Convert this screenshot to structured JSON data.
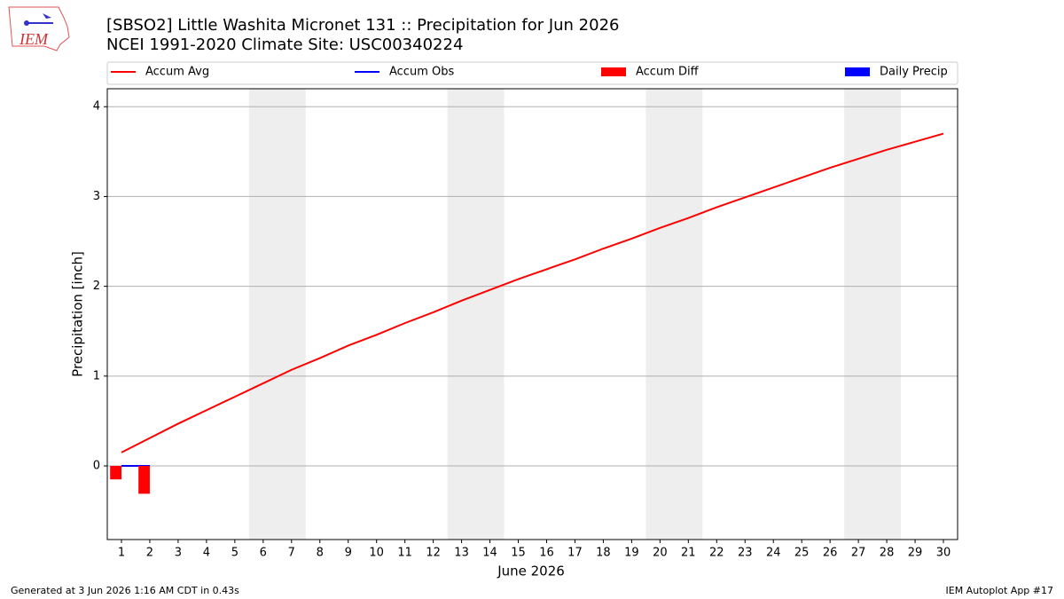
{
  "logo_text": "IEM",
  "footer": {
    "left": "Generated at 3 Jun 2026 1:16 AM CDT in 0.43s",
    "right": "IEM Autoplot App #17"
  },
  "chart_data": {
    "type": "line",
    "title": "[SBSO2] Little Washita Micronet 131 :: Precipitation for Jun 2026",
    "subtitle": "NCEI 1991-2020 Climate Site: USC00340224",
    "x_label": "June 2026",
    "y_label": "Precipitation [inch]",
    "x": [
      1,
      2,
      3,
      4,
      5,
      6,
      7,
      8,
      9,
      10,
      11,
      12,
      13,
      14,
      15,
      16,
      17,
      18,
      19,
      20,
      21,
      22,
      23,
      24,
      25,
      26,
      27,
      28,
      29,
      30
    ],
    "xlim": [
      0.5,
      30.5
    ],
    "xticks": [
      1,
      2,
      3,
      4,
      5,
      6,
      7,
      8,
      9,
      10,
      11,
      12,
      13,
      14,
      15,
      16,
      17,
      18,
      19,
      20,
      21,
      22,
      23,
      24,
      25,
      26,
      27,
      28,
      29,
      30
    ],
    "ylim": [
      -0.82,
      4.2
    ],
    "yticks": [
      0,
      1,
      2,
      3,
      4
    ],
    "grid": true,
    "shaded_x_ranges": [
      [
        5.5,
        7.5
      ],
      [
        12.5,
        14.5
      ],
      [
        19.5,
        21.5
      ],
      [
        26.5,
        28.5
      ]
    ],
    "shade_color": "#eeeeee",
    "series": [
      {
        "name": "Accum Avg",
        "type": "line",
        "color": "#ff0000",
        "values": [
          0.15,
          0.31,
          0.47,
          0.62,
          0.77,
          0.92,
          1.07,
          1.2,
          1.34,
          1.46,
          1.59,
          1.71,
          1.84,
          1.96,
          2.08,
          2.19,
          2.3,
          2.42,
          2.53,
          2.65,
          2.76,
          2.88,
          2.99,
          3.1,
          3.21,
          3.32,
          3.42,
          3.52,
          3.61,
          3.7
        ]
      },
      {
        "name": "Accum Obs",
        "type": "line",
        "color": "#0000ff",
        "values": [
          0,
          0,
          null,
          null,
          null,
          null,
          null,
          null,
          null,
          null,
          null,
          null,
          null,
          null,
          null,
          null,
          null,
          null,
          null,
          null,
          null,
          null,
          null,
          null,
          null,
          null,
          null,
          null,
          null,
          null
        ]
      },
      {
        "name": "Accum Diff",
        "type": "bar",
        "color": "#ff0000",
        "values": [
          -0.15,
          -0.31,
          null,
          null,
          null,
          null,
          null,
          null,
          null,
          null,
          null,
          null,
          null,
          null,
          null,
          null,
          null,
          null,
          null,
          null,
          null,
          null,
          null,
          null,
          null,
          null,
          null,
          null,
          null,
          null
        ]
      },
      {
        "name": "Daily Precip",
        "type": "bar",
        "color": "#0000ff",
        "values": [
          0,
          0,
          null,
          null,
          null,
          null,
          null,
          null,
          null,
          null,
          null,
          null,
          null,
          null,
          null,
          null,
          null,
          null,
          null,
          null,
          null,
          null,
          null,
          null,
          null,
          null,
          null,
          null,
          null,
          null
        ]
      }
    ]
  }
}
